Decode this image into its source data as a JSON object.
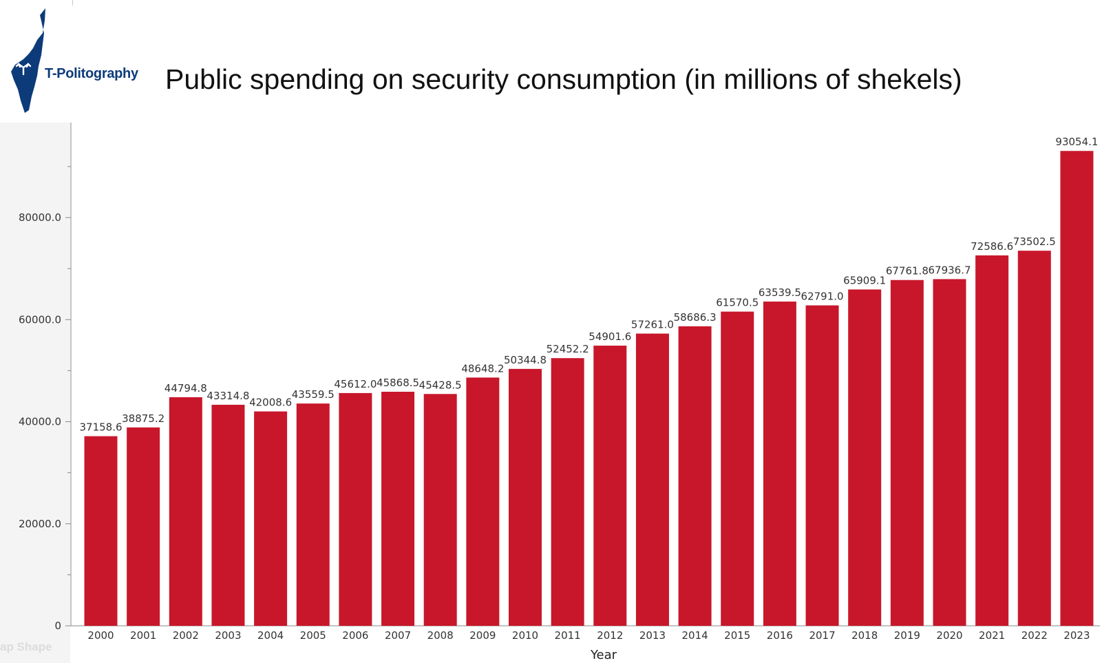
{
  "brand": {
    "name": "T-Politography"
  },
  "ghost_text": "ap Shape",
  "colors": {
    "bar": "#c8172b",
    "logo": "#0d3b7a",
    "axis": "#888888"
  },
  "chart_data": {
    "type": "bar",
    "title": "Public spending on security consumption (in millions of shekels)",
    "xlabel": "Year",
    "ylabel": "",
    "categories": [
      "2000",
      "2001",
      "2002",
      "2003",
      "2004",
      "2005",
      "2006",
      "2007",
      "2008",
      "2009",
      "2010",
      "2011",
      "2012",
      "2013",
      "2014",
      "2015",
      "2016",
      "2017",
      "2018",
      "2019",
      "2020",
      "2021",
      "2022",
      "2023"
    ],
    "values": [
      37158.6,
      38875.2,
      44794.8,
      43314.8,
      42008.6,
      43559.5,
      45612.0,
      45868.5,
      45428.5,
      48648.2,
      50344.8,
      52452.2,
      54901.6,
      57261.0,
      58686.3,
      61570.5,
      63539.5,
      62791.0,
      65909.1,
      67761.8,
      67936.7,
      72586.6,
      73502.5,
      93054.1
    ],
    "data_labels": [
      "37158.6",
      "38875.2",
      "44794.8",
      "43314.8",
      "42008.6",
      "43559.5",
      "45612.0",
      "45868.5",
      "45428.5",
      "48648.2",
      "50344.8",
      "52452.2",
      "54901.6",
      "57261.0",
      "58686.3",
      "61570.5",
      "63539.5",
      "62791.0",
      "65909.1",
      "67761.8",
      "67936.7",
      "72586.6",
      "73502.5",
      "93054.1"
    ],
    "ytick_values": [
      0,
      20000,
      40000,
      60000,
      80000
    ],
    "ytick_labels": [
      "0",
      "20000.0",
      "40000.0",
      "60000.0",
      "80000.0"
    ],
    "yminor_values": [
      10000,
      30000,
      50000,
      70000,
      90000
    ],
    "ylim": [
      0,
      99000
    ],
    "grid": false,
    "legend": "none"
  }
}
